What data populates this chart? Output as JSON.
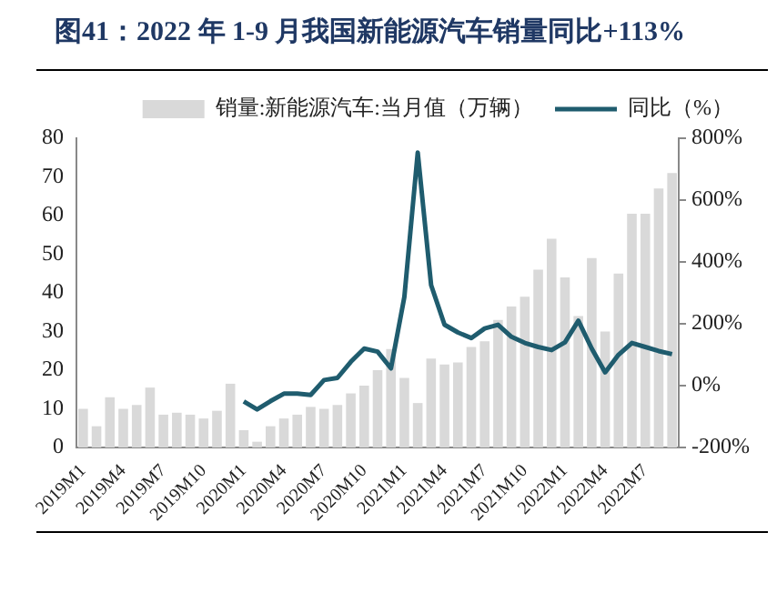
{
  "chart_data": {
    "type": "bar",
    "title": "图41：2022 年 1-9 月我国新能源汽车销量同比+113%",
    "categories": [
      "2019M1",
      null,
      null,
      "2019M4",
      null,
      null,
      "2019M7",
      null,
      null,
      "2019M10",
      null,
      null,
      "2020M1",
      null,
      null,
      "2020M4",
      null,
      null,
      "2020M7",
      null,
      null,
      "2020M10",
      null,
      null,
      "2021M1",
      null,
      null,
      "2021M4",
      null,
      null,
      "2021M7",
      null,
      null,
      "2021M10",
      null,
      null,
      "2022M1",
      null,
      null,
      "2022M4",
      null,
      null,
      "2022M7",
      null,
      null
    ],
    "series": [
      {
        "name": "销量:新能源汽车:当月值（万辆）",
        "color": "#d9d9d9",
        "values": [
          10,
          5.5,
          13,
          10,
          11,
          15.5,
          8.5,
          9,
          8.5,
          7.5,
          9.5,
          16.5,
          4.5,
          1.5,
          5.5,
          7.5,
          8.5,
          10.5,
          10,
          11,
          14,
          16,
          20,
          25.5,
          18,
          11.5,
          23,
          21.5,
          22,
          26,
          27.5,
          33,
          36.5,
          39,
          46,
          54,
          44,
          34,
          49,
          30,
          45,
          60.5,
          60.5,
          67,
          71
        ]
      },
      {
        "name": "同比（%）",
        "type": "line",
        "axis": "y2",
        "color": "#1f5c6e",
        "values": [
          null,
          null,
          null,
          null,
          null,
          null,
          null,
          null,
          null,
          null,
          null,
          null,
          -51,
          -77,
          -50,
          -26,
          -26,
          -30,
          18,
          25,
          77,
          120,
          110,
          56,
          287,
          754,
          325,
          197,
          172,
          154,
          185,
          197,
          158,
          138,
          125,
          115,
          140,
          210,
          120,
          43,
          100,
          138,
          125,
          112,
          102
        ]
      }
    ],
    "ylim": [
      0,
      80
    ],
    "yticks": [
      0,
      10,
      20,
      30,
      40,
      50,
      60,
      70,
      80
    ],
    "y2lim": [
      -200,
      800
    ],
    "y2ticks": [
      {
        "value": -200,
        "label": "-200%"
      },
      {
        "value": 0,
        "label": "0%"
      },
      {
        "value": 200,
        "label": "200%"
      },
      {
        "value": 400,
        "label": "400%"
      },
      {
        "value": 600,
        "label": "600%"
      },
      {
        "value": 800,
        "label": "800%"
      }
    ],
    "legend": "top",
    "grid": false,
    "marker": "none"
  }
}
